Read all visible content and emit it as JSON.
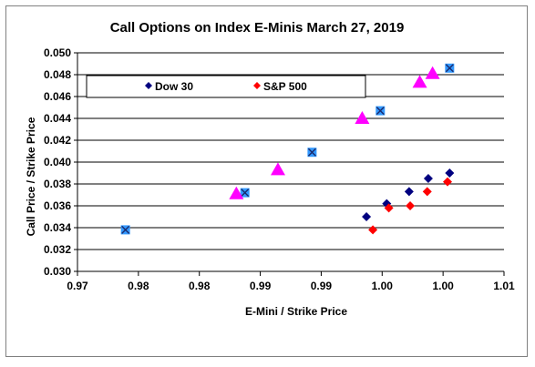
{
  "chart_data": {
    "type": "scatter",
    "title": "Call Options on Index E-Minis  March 27, 2019",
    "xlabel": "E-Mini / Strike Price",
    "ylabel": "Call Price / Strike Price",
    "xlim": [
      0.97,
      1.01
    ],
    "ylim": [
      0.03,
      0.05
    ],
    "grid": true,
    "x_tick_labels": [
      "0.97",
      "0.98",
      "0.98",
      "0.99",
      "0.99",
      "1.00",
      "1.00",
      "1.01"
    ],
    "y_tick_labels": [
      "0.030",
      "0.032",
      "0.034",
      "0.036",
      "0.038",
      "0.040",
      "0.042",
      "0.044",
      "0.046",
      "0.048",
      "0.050"
    ],
    "legend": {
      "position": "top-left",
      "entries": [
        "Dow 30",
        "S&P 500"
      ]
    },
    "series": [
      {
        "name": "Dow 30",
        "marker": "diamond",
        "color": "#000080",
        "points": [
          [
            0.9971,
            0.035
          ],
          [
            0.999,
            0.0362
          ],
          [
            1.0011,
            0.0373
          ],
          [
            1.0029,
            0.0385
          ],
          [
            1.0049,
            0.039
          ]
        ]
      },
      {
        "name": "S&P 500",
        "marker": "diamond",
        "color": "#ff0000",
        "points": [
          [
            0.9977,
            0.0338
          ],
          [
            0.9992,
            0.0358
          ],
          [
            1.0012,
            0.036
          ],
          [
            1.0028,
            0.0373
          ],
          [
            1.0047,
            0.0382
          ]
        ]
      },
      {
        "marker": "square-x",
        "color": "#3399ff",
        "points": [
          [
            0.9745,
            0.0338
          ],
          [
            0.9857,
            0.0372
          ],
          [
            0.992,
            0.0409
          ],
          [
            0.9984,
            0.0447
          ],
          [
            1.0049,
            0.0486
          ]
        ]
      },
      {
        "marker": "triangle",
        "color": "#ff00ff",
        "points": [
          [
            0.9849,
            0.0371
          ],
          [
            0.9888,
            0.0393
          ],
          [
            0.9967,
            0.044
          ],
          [
            1.0021,
            0.0473
          ],
          [
            1.0033,
            0.0481
          ]
        ]
      }
    ]
  }
}
